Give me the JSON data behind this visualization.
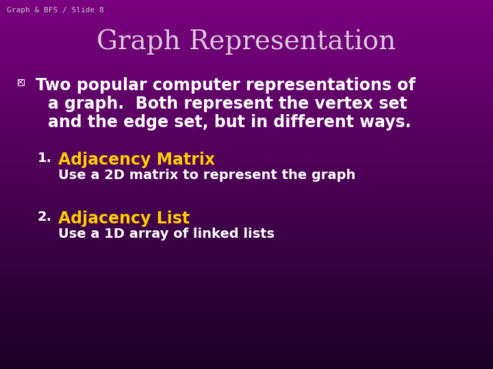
{
  "slide_label": "Graph & BFS / Slide 8",
  "title": "Graph Representation",
  "bullet_text_line1": "Two popular computer representations of",
  "bullet_text_line2": "a graph.  Both represent the vertex set",
  "bullet_text_line3": "and the edge set, but in different ways.",
  "item1_header": "Adjacency Matrix",
  "item1_number": "1.",
  "item1_body": "Use a 2D matrix to represent the graph",
  "item2_header": "Adjacency List",
  "item2_number": "2.",
  "item2_body": "Use a 1D array of linked lists",
  "bg_top_color": "#1a0025",
  "bg_bottom_color": "#7a0080",
  "title_color": "#ddc8dd",
  "slide_label_color": "#cccccc",
  "bullet_color": "#ffffff",
  "header_color": "#ffcc00",
  "body_color": "#ffffff",
  "number_color": "#ffffff",
  "title_fontsize": 28,
  "slide_label_fontsize": 8,
  "bullet_fontsize": 17,
  "header_fontsize": 17,
  "body_fontsize": 14,
  "number_fontsize": 14
}
